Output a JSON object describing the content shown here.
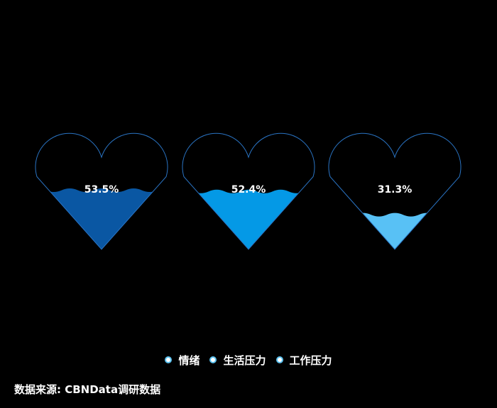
{
  "chart_data": {
    "type": "liquid-fill",
    "series": [
      {
        "name": "情绪",
        "value": 53.5,
        "label": "53.5%",
        "color": "#0a57a3"
      },
      {
        "name": "生活压力",
        "value": 52.4,
        "label": "52.4%",
        "color": "#0499e6"
      },
      {
        "name": "工作压力",
        "value": 31.3,
        "label": "31.3%",
        "color": "#58c1f5"
      }
    ],
    "outline_color": "#2a74c4",
    "background": "#000000"
  },
  "legend": {
    "items": [
      {
        "label": "情绪"
      },
      {
        "label": "生活压力"
      },
      {
        "label": "工作压力"
      }
    ]
  },
  "source": "数据来源: CBNData调研数据"
}
